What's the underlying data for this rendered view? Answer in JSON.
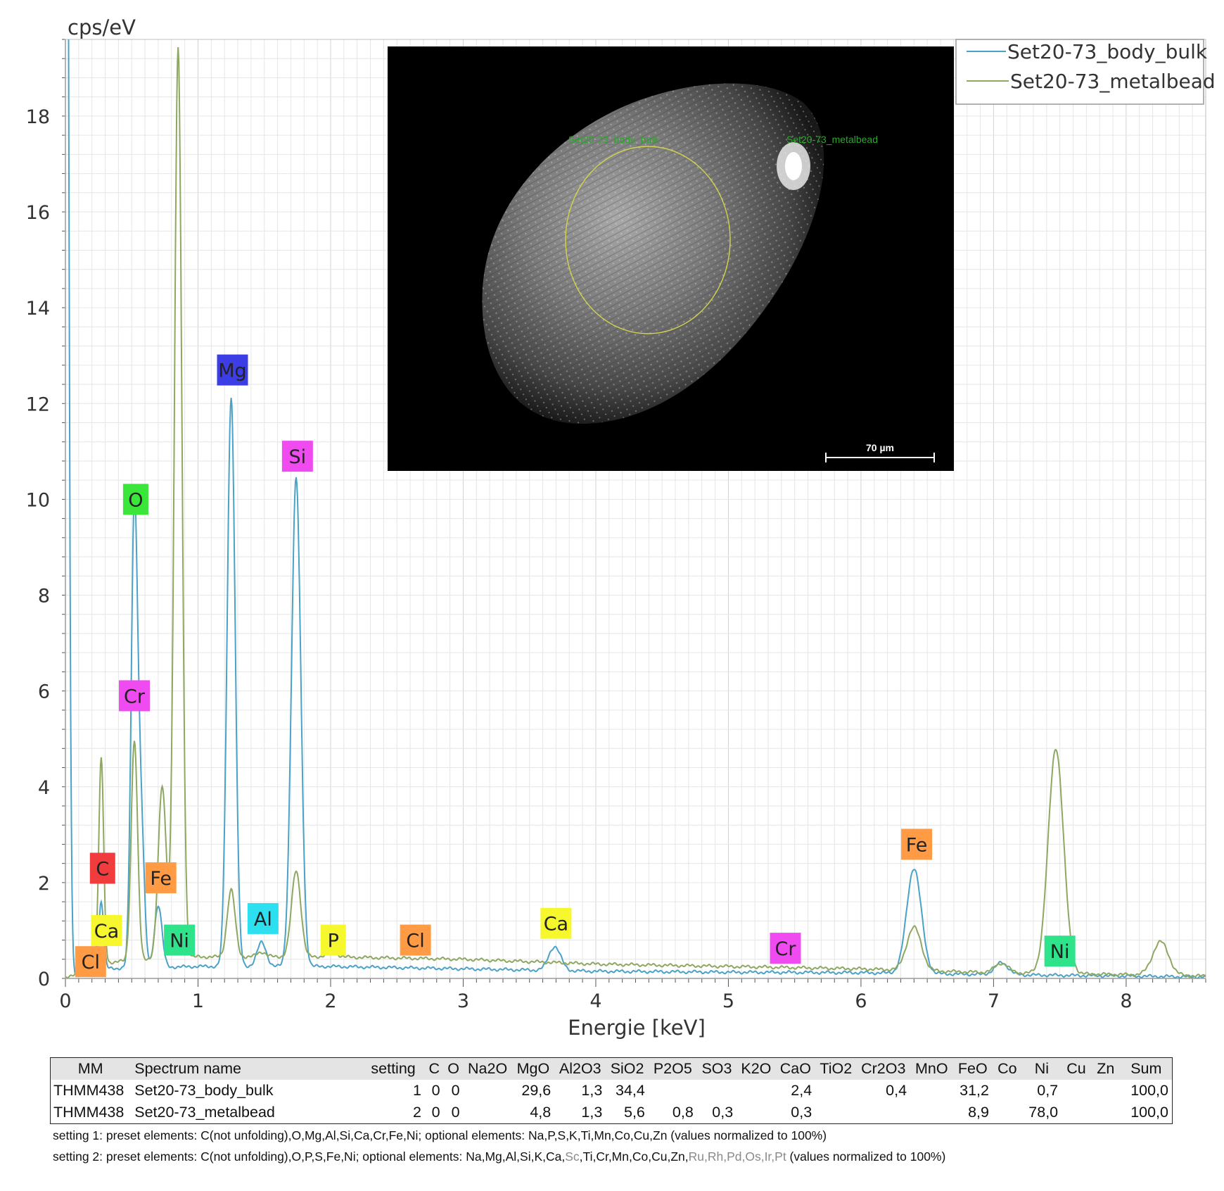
{
  "chart_data": {
    "type": "line",
    "ylabel": "cps/eV",
    "xlabel": "Energie [keV]",
    "xlim": [
      0,
      8.6
    ],
    "ylim": [
      0,
      19.6
    ],
    "xticks": [
      0,
      1,
      2,
      3,
      4,
      5,
      6,
      7,
      8
    ],
    "yticks": [
      0,
      2,
      4,
      6,
      8,
      10,
      12,
      14,
      16,
      18
    ],
    "grid": true,
    "legend_position": "top-right",
    "series": [
      {
        "name": "Set20-73_body_bulk",
        "color": "#4aa2c8",
        "baseline": [
          [
            0.2,
            0.2
          ],
          [
            1,
            0.25
          ],
          [
            2,
            0.25
          ],
          [
            3,
            0.2
          ],
          [
            4,
            0.15
          ],
          [
            5,
            0.13
          ],
          [
            6,
            0.12
          ],
          [
            7,
            0.08
          ],
          [
            8,
            0.05
          ],
          [
            8.6,
            0.03
          ]
        ],
        "peaks": [
          {
            "x": 0.0,
            "h": 40,
            "w": 0.02
          },
          {
            "x": 0.27,
            "h": 1.4,
            "w": 0.018
          },
          {
            "x": 0.52,
            "h": 9.6,
            "w": 0.024
          },
          {
            "x": 0.57,
            "h": 3.0,
            "w": 0.024
          },
          {
            "x": 0.7,
            "h": 1.3,
            "w": 0.028
          },
          {
            "x": 1.25,
            "h": 11.9,
            "w": 0.03
          },
          {
            "x": 1.48,
            "h": 0.5,
            "w": 0.035
          },
          {
            "x": 1.74,
            "h": 10.2,
            "w": 0.035
          },
          {
            "x": 3.69,
            "h": 0.5,
            "w": 0.045
          },
          {
            "x": 6.4,
            "h": 2.2,
            "w": 0.055
          },
          {
            "x": 7.06,
            "h": 0.25,
            "w": 0.05
          }
        ]
      },
      {
        "name": "Set20-73_metalbead",
        "color": "#8ea862",
        "baseline": [
          [
            0.2,
            0.3
          ],
          [
            0.6,
            0.4
          ],
          [
            1,
            0.45
          ],
          [
            2,
            0.45
          ],
          [
            3,
            0.4
          ],
          [
            4,
            0.3
          ],
          [
            5,
            0.25
          ],
          [
            6,
            0.2
          ],
          [
            7,
            0.12
          ],
          [
            8,
            0.08
          ],
          [
            8.6,
            0.05
          ]
        ],
        "peaks": [
          {
            "x": 0.27,
            "h": 4.3,
            "w": 0.018
          },
          {
            "x": 0.52,
            "h": 4.6,
            "w": 0.024
          },
          {
            "x": 0.73,
            "h": 3.6,
            "w": 0.03
          },
          {
            "x": 0.85,
            "h": 19.0,
            "w": 0.028
          },
          {
            "x": 1.25,
            "h": 1.4,
            "w": 0.03
          },
          {
            "x": 1.48,
            "h": 0.1,
            "w": 0.035
          },
          {
            "x": 1.74,
            "h": 1.8,
            "w": 0.035
          },
          {
            "x": 2.01,
            "h": 0.1,
            "w": 0.04
          },
          {
            "x": 6.4,
            "h": 0.9,
            "w": 0.055
          },
          {
            "x": 7.06,
            "h": 0.2,
            "w": 0.05
          },
          {
            "x": 7.47,
            "h": 4.7,
            "w": 0.058
          },
          {
            "x": 8.26,
            "h": 0.7,
            "w": 0.06
          }
        ]
      }
    ],
    "peak_labels": [
      {
        "text": "C",
        "x": 0.28,
        "y": 2.3,
        "color": "#f03c3c"
      },
      {
        "text": "O",
        "x": 0.53,
        "y": 10.0,
        "color": "#39e639"
      },
      {
        "text": "Cr",
        "x": 0.52,
        "y": 5.9,
        "color": "#f04bf0"
      },
      {
        "text": "Fe",
        "x": 0.72,
        "y": 2.1,
        "color": "#ff9b45"
      },
      {
        "text": "Ca",
        "x": 0.31,
        "y": 1.0,
        "color": "#f7f72d"
      },
      {
        "text": "Cl",
        "x": 0.19,
        "y": 0.35,
        "color": "#ff9b45"
      },
      {
        "text": "Ni",
        "x": 0.86,
        "y": 0.8,
        "color": "#2fe38b"
      },
      {
        "text": "Mg",
        "x": 1.26,
        "y": 12.7,
        "color": "#3d3de6"
      },
      {
        "text": "Si",
        "x": 1.75,
        "y": 10.9,
        "color": "#f04bf0"
      },
      {
        "text": "Al",
        "x": 1.49,
        "y": 1.25,
        "color": "#2de0f0"
      },
      {
        "text": "P",
        "x": 2.02,
        "y": 0.8,
        "color": "#f7f72d"
      },
      {
        "text": "Cl",
        "x": 2.64,
        "y": 0.8,
        "color": "#ff9b45"
      },
      {
        "text": "Ca",
        "x": 3.7,
        "y": 1.15,
        "color": "#f7f72d"
      },
      {
        "text": "Cr",
        "x": 5.43,
        "y": 0.63,
        "color": "#f04bf0"
      },
      {
        "text": "Fe",
        "x": 6.42,
        "y": 2.8,
        "color": "#ff9b45"
      },
      {
        "text": "Ni",
        "x": 7.5,
        "y": 0.57,
        "color": "#2fe38b"
      }
    ]
  },
  "sem_image": {
    "region_label_1": "Set20-73_body_bulk",
    "region_label_2": "Set20-73_metalbead",
    "scale_bar": "70 µm"
  },
  "table": {
    "headers": [
      "MM",
      "Spectrum name",
      "setting",
      "C",
      "O",
      "Na2O",
      "MgO",
      "Al2O3",
      "SiO2",
      "P2O5",
      "SO3",
      "K2O",
      "CaO",
      "TiO2",
      "Cr2O3",
      "MnO",
      "FeO",
      "Co",
      "Ni",
      "Cu",
      "Zn",
      "Sum"
    ],
    "rows": [
      [
        "THMM438",
        "Set20-73_body_bulk",
        "1",
        "0",
        "0",
        "",
        "29,6",
        "1,3",
        "34,4",
        "",
        "",
        "",
        "2,4",
        "",
        "0,4",
        "",
        "31,2",
        "",
        "0,7",
        "",
        "",
        "100,0"
      ],
      [
        "THMM438",
        "Set20-73_metalbead",
        "2",
        "0",
        "0",
        "",
        "4,8",
        "1,3",
        "5,6",
        "0,8",
        "0,3",
        "",
        "0,3",
        "",
        "",
        "",
        "8,9",
        "",
        "78,0",
        "",
        "",
        "100,0"
      ]
    ]
  },
  "notes": {
    "setting1": "setting 1: preset elements: C(not unfolding),O,Mg,Al,Si,Ca,Cr,Fe,Ni; optional elements: Na,P,S,K,Ti,Mn,Co,Cu,Zn (values normalized to 100%)",
    "setting2_a": "setting 2: preset elements: C(not unfolding),O,P,S,Fe,Ni; optional elements: Na,Mg,Al,Si,K,Ca,",
    "setting2_sc": "Sc",
    "setting2_b": ",Ti,Cr,Mn,Co,Cu,Zn,",
    "setting2_pgm": "Ru,Rh,Pd,Os,Ir,Pt",
    "setting2_c": " (values normalized to 100%)"
  }
}
